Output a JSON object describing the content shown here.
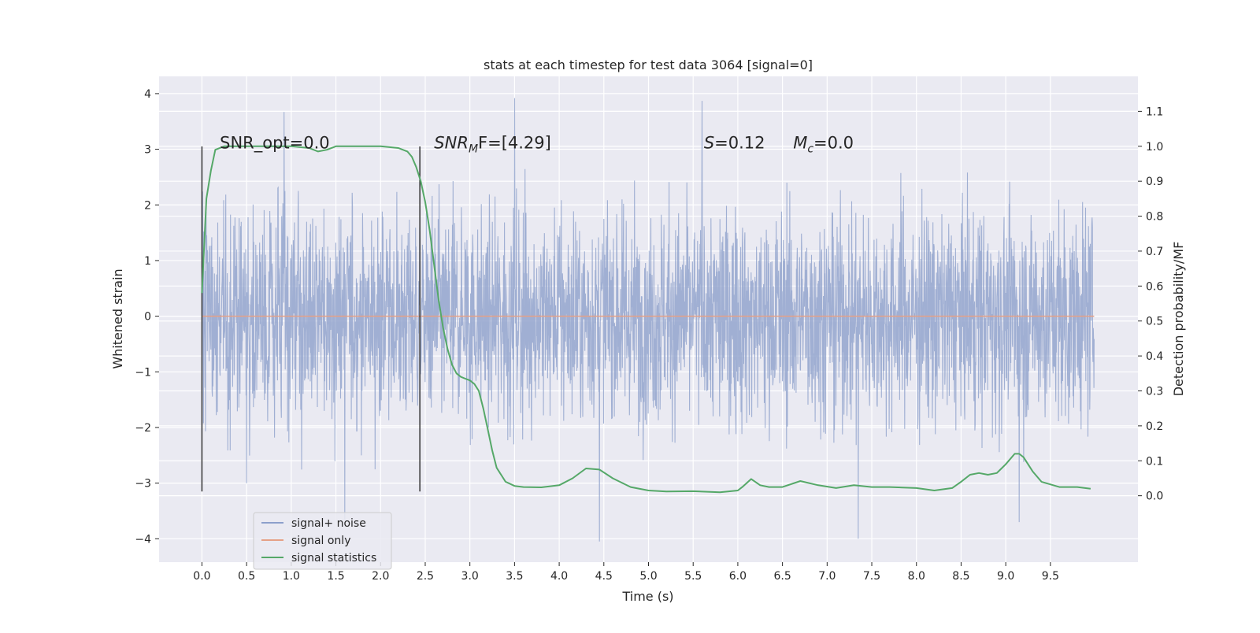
{
  "chart_data": {
    "type": "line",
    "title": "stats at each timestep for test data 3064 [signal=0]",
    "xlabel": "Time (s)",
    "ylabel": "Whitened strain",
    "ylabel_right": "Detection probability/MF",
    "xlim": [
      -0.48,
      10.48
    ],
    "ylim": [
      -4.42,
      4.31
    ],
    "ylim_right": [
      -0.19,
      1.2
    ],
    "x_ticks": [
      0.0,
      0.5,
      1.0,
      1.5,
      2.0,
      2.5,
      3.0,
      3.5,
      4.0,
      4.5,
      5.0,
      5.5,
      6.0,
      6.5,
      7.0,
      7.5,
      8.0,
      8.5,
      9.0,
      9.5
    ],
    "x_tick_labels": [
      "0.0",
      "0.5",
      "1.0",
      "1.5",
      "2.0",
      "2.5",
      "3.0",
      "3.5",
      "4.0",
      "4.5",
      "5.0",
      "5.5",
      "6.0",
      "6.5",
      "7.0",
      "7.5",
      "8.0",
      "8.5",
      "9.0",
      "9.5"
    ],
    "y_ticks": [
      4,
      3,
      2,
      1,
      0,
      -1,
      -2,
      -3,
      -4
    ],
    "y_tick_labels": [
      "4",
      "3",
      "2",
      "1",
      "0",
      "−1",
      "−2",
      "−3",
      "−4"
    ],
    "y_right_ticks": [
      1.1,
      1.0,
      0.9,
      0.8,
      0.7,
      0.6,
      0.5,
      0.4,
      0.3,
      0.2,
      0.1,
      0.0
    ],
    "y_right_tick_labels": [
      "1.1",
      "1.0",
      "0.9",
      "0.8",
      "0.7",
      "0.6",
      "0.5",
      "0.4",
      "0.3",
      "0.2",
      "0.1",
      "0.0"
    ],
    "grid": true,
    "legend_position": "lower-left",
    "series": [
      {
        "name": "signal+ noise",
        "axis": "left",
        "color": "#8da0cb",
        "x_range": [
          0.0,
          9.99
        ],
        "approx_range": [
          -4.05,
          3.92
        ],
        "spikes": [
          {
            "x": 0.92,
            "y": 3.67
          },
          {
            "x": 1.6,
            "y": -3.65
          },
          {
            "x": 3.5,
            "y": 3.92
          },
          {
            "x": 4.45,
            "y": -4.05
          },
          {
            "x": 5.6,
            "y": 3.87
          },
          {
            "x": 7.35,
            "y": -4.0
          },
          {
            "x": 9.15,
            "y": -3.7
          }
        ]
      },
      {
        "name": "signal only",
        "axis": "left",
        "color": "#e5a186",
        "x": [
          0.0,
          9.99
        ],
        "y": [
          0.0,
          0.0
        ]
      },
      {
        "name": "signal statistics",
        "axis": "right",
        "color": "#55a868",
        "x": [
          0.0,
          0.05,
          0.1,
          0.15,
          0.25,
          0.4,
          0.6,
          0.8,
          1.0,
          1.2,
          1.3,
          1.4,
          1.5,
          1.6,
          1.8,
          2.0,
          2.2,
          2.3,
          2.35,
          2.4,
          2.45,
          2.5,
          2.55,
          2.6,
          2.65,
          2.7,
          2.75,
          2.8,
          2.85,
          2.9,
          2.95,
          3.0,
          3.05,
          3.1,
          3.15,
          3.2,
          3.25,
          3.3,
          3.4,
          3.5,
          3.6,
          3.8,
          4.0,
          4.15,
          4.3,
          4.45,
          4.6,
          4.8,
          5.0,
          5.2,
          5.5,
          5.8,
          6.0,
          6.05,
          6.15,
          6.25,
          6.35,
          6.5,
          6.7,
          6.9,
          7.1,
          7.3,
          7.5,
          7.7,
          8.0,
          8.2,
          8.4,
          8.5,
          8.6,
          8.7,
          8.8,
          8.9,
          9.0,
          9.1,
          9.15,
          9.2,
          9.3,
          9.4,
          9.6,
          9.8,
          9.95
        ],
        "y": [
          0.58,
          0.85,
          0.93,
          0.99,
          1.0,
          1.0,
          1.0,
          1.0,
          1.0,
          0.995,
          0.985,
          0.99,
          1.0,
          1.0,
          1.0,
          1.0,
          0.995,
          0.985,
          0.97,
          0.94,
          0.9,
          0.84,
          0.76,
          0.66,
          0.56,
          0.48,
          0.42,
          0.375,
          0.35,
          0.34,
          0.335,
          0.33,
          0.32,
          0.3,
          0.25,
          0.19,
          0.13,
          0.08,
          0.04,
          0.028,
          0.025,
          0.024,
          0.03,
          0.05,
          0.078,
          0.075,
          0.05,
          0.025,
          0.015,
          0.012,
          0.013,
          0.01,
          0.015,
          0.025,
          0.048,
          0.03,
          0.025,
          0.025,
          0.042,
          0.03,
          0.022,
          0.03,
          0.025,
          0.025,
          0.022,
          0.015,
          0.022,
          0.04,
          0.06,
          0.065,
          0.06,
          0.065,
          0.09,
          0.12,
          0.12,
          0.11,
          0.07,
          0.04,
          0.025,
          0.025,
          0.02
        ]
      }
    ],
    "vertical_lines": [
      {
        "x": 0.0,
        "y_range": [
          -3.15,
          3.05
        ],
        "color": "#333333"
      },
      {
        "x": 2.44,
        "y_range": [
          -3.15,
          3.05
        ],
        "color": "#333333"
      }
    ],
    "annotations": [
      {
        "text": "SNR_opt=0.0",
        "x": 0.2,
        "y": 3.1
      },
      {
        "text": "SNR",
        "sub": "M",
        "tail": "F=[4.29]",
        "italic_main": true,
        "x": 2.6,
        "y": 3.1
      },
      {
        "text": "S",
        "tail": "=0.12",
        "italic_main": true,
        "x": 5.62,
        "y": 3.1
      },
      {
        "text": "M",
        "sub": "c",
        "tail": "=0.0",
        "italic_main": true,
        "x": 6.62,
        "y": 3.1
      }
    ]
  }
}
